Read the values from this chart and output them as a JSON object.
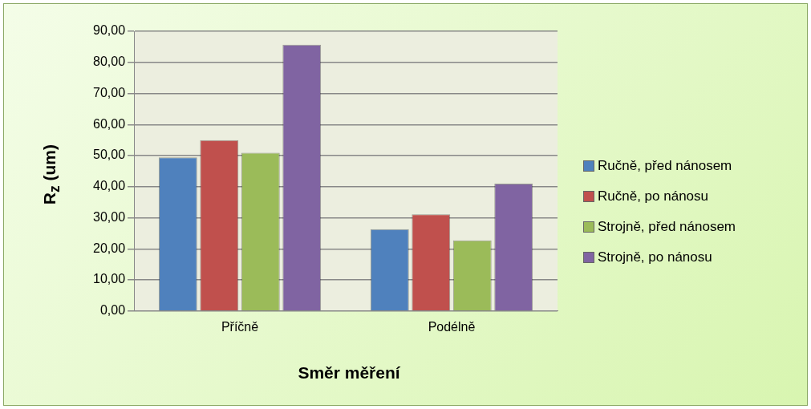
{
  "chart_data": {
    "type": "bar",
    "xlabel": "Směr měření",
    "ylabel": "R$_{z}$ (um)",
    "categories": [
      "Příčně",
      "Podélně"
    ],
    "series": [
      {
        "name": "Ručně, před nánosem",
        "color": "#4f81bd",
        "values": [
          49.4,
          26.3
        ]
      },
      {
        "name": "Ručně, po nánosu",
        "color": "#c0504d",
        "values": [
          55.0,
          31.1
        ]
      },
      {
        "name": "Strojně, před nánosem",
        "color": "#9bbb59",
        "values": [
          50.9,
          22.7
        ]
      },
      {
        "name": "Strojně, po nánosu",
        "color": "#8064a2",
        "values": [
          85.7,
          41.0
        ]
      }
    ],
    "ylim": [
      0,
      90
    ],
    "yticks": [
      {
        "value": 0,
        "label": "0,00"
      },
      {
        "value": 10,
        "label": "10,00"
      },
      {
        "value": 20,
        "label": "20,00"
      },
      {
        "value": 30,
        "label": "30,00"
      },
      {
        "value": 40,
        "label": "40,00"
      },
      {
        "value": 50,
        "label": "50,00"
      },
      {
        "value": 60,
        "label": "60,00"
      },
      {
        "value": 70,
        "label": "70,00"
      },
      {
        "value": 80,
        "label": "80,00"
      },
      {
        "value": 90,
        "label": "90,00"
      }
    ],
    "grid": "y",
    "legend": "right"
  }
}
